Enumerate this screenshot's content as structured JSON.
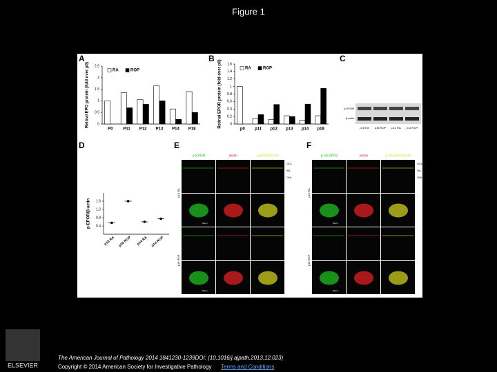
{
  "title": "Figure 1",
  "chart_data": [
    {
      "type": "bar",
      "label": "A",
      "ylabel": "Retinal EPO protein (fold over p0)",
      "categories": [
        "P0",
        "P11",
        "P12",
        "P13",
        "P14",
        "P18"
      ],
      "series": [
        {
          "name": "RA",
          "color": "#ffffff",
          "values": [
            1,
            1.35,
            1.05,
            1.65,
            0.65,
            1.4
          ]
        },
        {
          "name": "ROP",
          "color": "#000000",
          "values": [
            null,
            0.7,
            0.85,
            1.0,
            0.2,
            0.5
          ]
        }
      ],
      "ylim": [
        0,
        2.5
      ],
      "yticks": [
        0,
        0.5,
        1,
        1.5,
        2,
        2.5
      ]
    },
    {
      "type": "bar",
      "label": "B",
      "ylabel": "Retinal EPOR protein (fold over p0)",
      "categories": [
        "p0",
        "p11",
        "p12",
        "p13",
        "p14",
        "p18"
      ],
      "series": [
        {
          "name": "RA",
          "color": "#ffffff",
          "values": [
            1.0,
            0.15,
            0.12,
            0.22,
            0.1,
            0.22
          ]
        },
        {
          "name": "ROP",
          "color": "#000000",
          "values": [
            null,
            0.25,
            0.52,
            0.2,
            0.53,
            0.95
          ]
        }
      ],
      "ylim": [
        0,
        1.6
      ],
      "yticks": [
        0,
        0.2,
        0.4,
        0.6,
        0.8,
        1,
        1.2,
        1.4,
        1.6
      ]
    },
    {
      "type": "dot",
      "label": "D",
      "ylabel": "p-EPOR/β-actin",
      "categories": [
        "p18 RA",
        "p18 ROP",
        "p14 RA",
        "p14 ROP"
      ],
      "values": [
        0.55,
        1.6,
        0.6,
        0.75
      ],
      "color": "#000000",
      "ylim": [
        0,
        2
      ],
      "yticks": [
        0.4,
        0.8,
        1.2,
        1.6
      ]
    }
  ],
  "panel_c": {
    "label": "C",
    "rows": [
      "p-EPOR",
      "β-actin"
    ],
    "lanes": [
      "p18 RA",
      "p18 ROP",
      "p14 RA",
      "p14 ROP"
    ]
  },
  "panel_e": {
    "label": "E",
    "columns": [
      "p-EPOR",
      "lectin",
      "p-EPOR/lectin"
    ],
    "rows": [
      "p18 RA",
      "p18 ROP"
    ],
    "layers": [
      "GCL",
      "INL",
      "ONL"
    ],
    "scale": "50µm"
  },
  "panel_f": {
    "label": "F",
    "columns": [
      "p-VEGFR2",
      "lectin",
      "p-VEGFR2/lectin"
    ],
    "rows": [
      "p18 RA",
      "p18 ROP"
    ],
    "layers": [
      "GCL",
      "INL",
      "ONL"
    ],
    "scale": "50µm"
  },
  "footer": {
    "citation": "The American Journal of Pathology 2014 1841230-1239DOI: (10.1016/j.ajpath.2013.12.023)",
    "copyright": "Copyright © 2014 American Society for Investigative Pathology",
    "terms": "Terms and Conditions"
  },
  "logo": "ELSEVIER"
}
